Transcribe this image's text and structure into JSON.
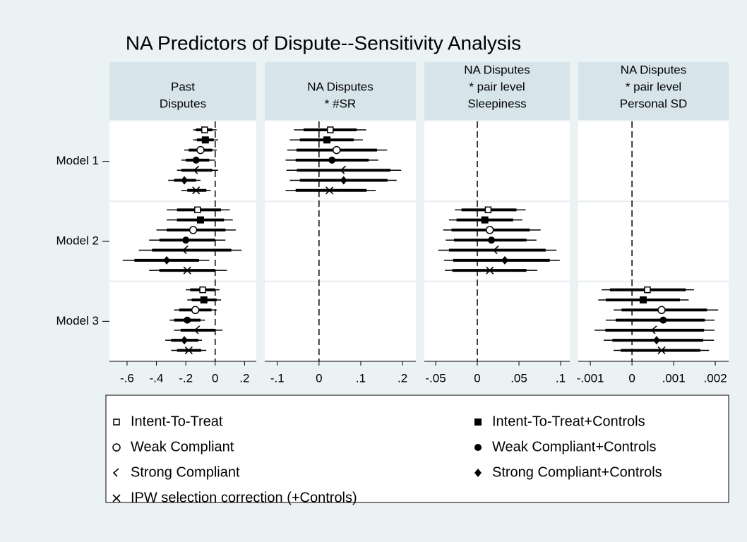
{
  "chart_data": {
    "type": "coefplot",
    "title": "NA Predictors of Dispute--Sensitivity Analysis",
    "categories": [
      "Model 1",
      "Model 2",
      "Model 3"
    ],
    "panels": [
      {
        "title": [
          "Past",
          "Disputes"
        ],
        "xlim": [
          -0.72,
          0.28
        ],
        "refline": 0,
        "xticks": [
          {
            "value": -0.6,
            "label": "-.6"
          },
          {
            "value": -0.4,
            "label": "-.4"
          },
          {
            "value": -0.2,
            "label": "-.2"
          },
          0,
          {
            "value": 0.2,
            "label": ".2"
          }
        ]
      },
      {
        "title": [
          "NA Disputes",
          "* #SR"
        ],
        "xlim": [
          -0.13,
          0.232
        ],
        "refline": 0,
        "xticks": [
          {
            "value": -0.1,
            "label": "-.1"
          },
          0,
          {
            "value": 0.1,
            "label": ".1"
          },
          {
            "value": 0.2,
            "label": ".2"
          }
        ]
      },
      {
        "title": [
          "NA Disputes",
          "* pair level",
          "Sleepiness"
        ],
        "xlim": [
          -0.0636,
          0.111
        ],
        "refline": 0,
        "xticks": [
          {
            "value": -0.05,
            "label": "-.05"
          },
          0,
          {
            "value": 0.05,
            "label": ".05"
          },
          {
            "value": 0.1,
            "label": ".1"
          }
        ]
      },
      {
        "title": [
          "NA Disputes",
          "* pair level",
          "Personal SD"
        ],
        "xlim": [
          -0.00129,
          0.00232
        ],
        "refline": 0,
        "xticks": [
          {
            "value": -0.001,
            "label": "-.001"
          },
          0,
          {
            "value": 0.001,
            "label": ".001"
          },
          {
            "value": 0.002,
            "label": ".002"
          }
        ]
      }
    ],
    "series": [
      {
        "name": "Intent-To-Treat",
        "marker": "square-hollow",
        "color": "#000000",
        "values": [
          [
            -0.072,
            -0.12,
            -0.085
          ],
          [
            0.027,
            null,
            null
          ],
          [
            null,
            0.013,
            null
          ],
          [
            null,
            null,
            0.00037
          ]
        ],
        "ci95": [
          [
            [
              -0.15,
              0.01
            ],
            [
              -0.33,
              0.1
            ],
            [
              -0.2,
              0.03
            ]
          ],
          [
            [
              -0.06,
              0.113
            ],
            null,
            null
          ],
          [
            null,
            [
              -0.027,
              0.058
            ],
            null
          ],
          [
            null,
            null,
            [
              -0.00073,
              0.00149
            ]
          ]
        ],
        "ci90": [
          [
            [
              -0.13,
              -0.02
            ],
            [
              -0.26,
              0.04
            ],
            [
              -0.17,
              0.0
            ]
          ],
          [
            [
              -0.037,
              0.09
            ],
            null,
            null
          ],
          [
            null,
            [
              -0.019,
              0.047
            ],
            null
          ],
          [
            null,
            null,
            [
              -0.00053,
              0.00129
            ]
          ]
        ]
      },
      {
        "name": "Intent-To-Treat+Controls",
        "marker": "square",
        "color": "#000000",
        "values": [
          [
            -0.067,
            -0.1,
            -0.077
          ],
          [
            0.019,
            null,
            null
          ],
          [
            null,
            0.009,
            null
          ],
          [
            null,
            null,
            0.00027
          ]
        ],
        "ci95": [
          [
            [
              -0.15,
              0.02
            ],
            [
              -0.33,
              0.12
            ],
            [
              -0.19,
              0.04
            ]
          ],
          [
            [
              -0.07,
              0.105
            ],
            null,
            null
          ],
          [
            null,
            [
              -0.034,
              0.054
            ],
            null
          ],
          [
            null,
            null,
            [
              -0.00081,
              0.00136
            ]
          ]
        ],
        "ci90": [
          [
            [
              -0.125,
              -0.01
            ],
            [
              -0.26,
              0.06
            ],
            [
              -0.16,
              0.01
            ]
          ],
          [
            [
              -0.046,
              0.083
            ],
            null,
            null
          ],
          [
            null,
            [
              -0.025,
              0.043
            ],
            null
          ],
          [
            null,
            null,
            [
              -0.00063,
              0.00115
            ]
          ]
        ]
      },
      {
        "name": "Weak Compliant",
        "marker": "circle-hollow",
        "color": "#000000",
        "values": [
          [
            -0.1,
            -0.15,
            -0.135
          ],
          [
            0.042,
            null,
            null
          ],
          [
            null,
            0.015,
            null
          ],
          [
            null,
            null,
            0.00071
          ]
        ],
        "ci95": [
          [
            [
              -0.21,
              0.01
            ],
            [
              -0.4,
              0.14
            ],
            [
              -0.28,
              0.01
            ]
          ],
          [
            [
              -0.076,
              0.163
            ],
            null,
            null
          ],
          [
            null,
            [
              -0.041,
              0.076
            ],
            null
          ],
          [
            null,
            null,
            [
              -0.00044,
              0.00207
            ]
          ]
        ],
        "ci90": [
          [
            [
              -0.18,
              -0.02
            ],
            [
              -0.33,
              0.07
            ],
            [
              -0.245,
              -0.025
            ]
          ],
          [
            [
              -0.054,
              0.139
            ],
            null,
            null
          ],
          [
            null,
            [
              -0.031,
              0.063
            ],
            null
          ],
          [
            null,
            null,
            [
              -0.00025,
              0.0018
            ]
          ]
        ]
      },
      {
        "name": "Weak Compliant+Controls",
        "marker": "circle",
        "color": "#000000",
        "values": [
          [
            -0.13,
            -0.2,
            -0.19
          ],
          [
            0.031,
            null,
            null
          ],
          [
            null,
            0.017,
            null
          ],
          [
            null,
            null,
            0.00075
          ]
        ],
        "ci95": [
          [
            [
              -0.23,
              0.0
            ],
            [
              -0.45,
              0.07
            ],
            [
              -0.31,
              -0.07
            ]
          ],
          [
            [
              -0.08,
              0.142
            ],
            null,
            null
          ],
          [
            null,
            [
              -0.038,
              0.071
            ],
            null
          ],
          [
            null,
            null,
            [
              -0.00063,
              0.00198
            ]
          ]
        ],
        "ci90": [
          [
            [
              -0.2,
              -0.04
            ],
            [
              -0.38,
              0.0
            ],
            [
              -0.28,
              -0.1
            ]
          ],
          [
            [
              -0.056,
              0.119
            ],
            null,
            null
          ],
          [
            null,
            [
              -0.028,
              0.059
            ],
            null
          ],
          [
            null,
            null,
            [
              -0.00039,
              0.00175
            ]
          ]
        ]
      },
      {
        "name": "Strong Compliant",
        "marker": "chevron",
        "color": "#000000",
        "values": [
          [
            -0.125,
            -0.2,
            -0.12
          ],
          [
            0.059,
            null,
            null
          ],
          [
            null,
            0.023,
            null
          ],
          [
            null,
            null,
            0.00054
          ]
        ],
        "ci95": [
          [
            [
              -0.26,
              0.02
            ],
            [
              -0.52,
              0.18
            ],
            [
              -0.28,
              0.05
            ]
          ],
          [
            [
              -0.078,
              0.197
            ],
            null,
            null
          ],
          [
            null,
            [
              -0.047,
              0.095
            ],
            null
          ],
          [
            null,
            null,
            [
              -0.0009,
              0.00198
            ]
          ]
        ],
        "ci90": [
          [
            [
              -0.23,
              -0.02
            ],
            [
              -0.43,
              0.11
            ],
            [
              -0.235,
              0.0
            ]
          ],
          [
            [
              -0.053,
              0.171
            ],
            null,
            null
          ],
          [
            null,
            [
              -0.034,
              0.082
            ],
            null
          ],
          [
            null,
            null,
            [
              -0.00064,
              0.00173
            ]
          ]
        ]
      },
      {
        "name": "Strong Compliant+Controls",
        "marker": "diamond",
        "color": "#000000",
        "values": [
          [
            -0.21,
            -0.33,
            -0.21
          ],
          [
            0.059,
            null,
            null
          ],
          [
            null,
            0.033,
            null
          ],
          [
            null,
            null,
            0.00059
          ]
        ],
        "ci95": [
          [
            [
              -0.32,
              -0.1
            ],
            [
              -0.63,
              -0.04
            ],
            [
              -0.34,
              -0.09
            ]
          ],
          [
            [
              -0.07,
              0.186
            ],
            null,
            null
          ],
          [
            null,
            [
              -0.04,
              0.099
            ],
            null
          ],
          [
            null,
            null,
            [
              -0.00068,
              0.00197
            ]
          ]
        ],
        "ci90": [
          [
            [
              -0.28,
              -0.13
            ],
            [
              -0.55,
              -0.11
            ],
            [
              -0.3,
              -0.115
            ]
          ],
          [
            [
              -0.046,
              0.164
            ],
            null,
            null
          ],
          [
            null,
            [
              -0.029,
              0.087
            ],
            null
          ],
          [
            null,
            null,
            [
              -0.00047,
              0.00171
            ]
          ]
        ]
      },
      {
        "name": "IPW selection correction (+Controls)",
        "marker": "x",
        "color": "#000000",
        "values": [
          [
            -0.13,
            -0.19,
            -0.18
          ],
          [
            0.025,
            null,
            null
          ],
          [
            null,
            0.015,
            null
          ],
          [
            null,
            null,
            0.00071
          ]
        ],
        "ci95": [
          [
            [
              -0.23,
              -0.03
            ],
            [
              -0.45,
              0.08
            ],
            [
              -0.3,
              -0.06
            ]
          ],
          [
            [
              -0.08,
              0.136
            ],
            null,
            null
          ],
          [
            null,
            [
              -0.039,
              0.072
            ],
            null
          ],
          [
            null,
            null,
            [
              -0.00044,
              0.00185
            ]
          ]
        ],
        "ci90": [
          [
            [
              -0.19,
              -0.06
            ],
            [
              -0.38,
              0.0
            ],
            [
              -0.26,
              -0.095
            ]
          ],
          [
            [
              -0.056,
              0.114
            ],
            null,
            null
          ],
          [
            null,
            [
              -0.03,
              0.059
            ],
            null
          ],
          [
            null,
            null,
            [
              -0.00027,
              0.00164
            ]
          ]
        ]
      }
    ]
  }
}
